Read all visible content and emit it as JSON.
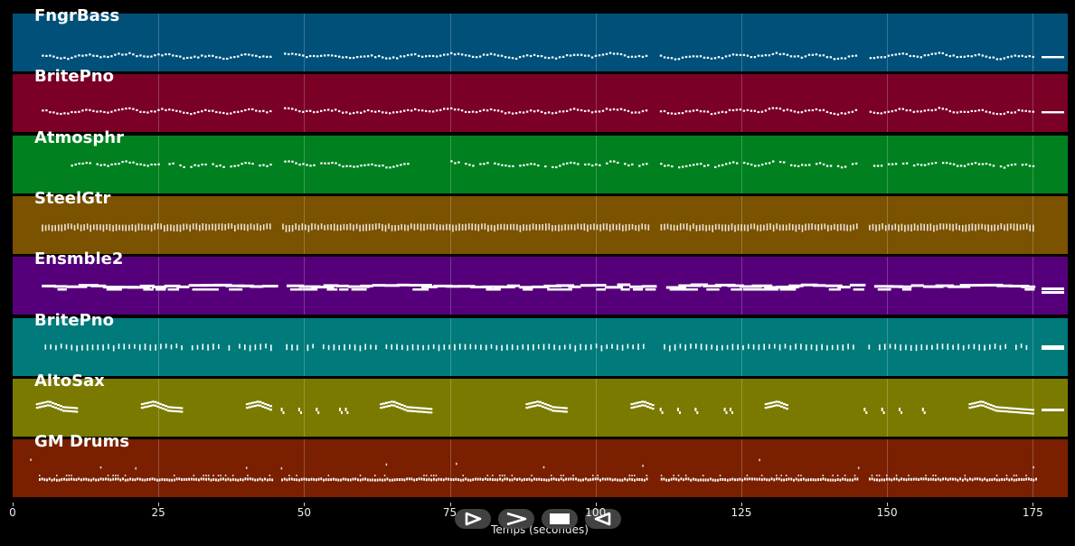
{
  "tracks": [
    {
      "name": "FngrBass",
      "color": "#00507a",
      "pattern": "wave",
      "row": 46
    },
    {
      "name": "BritePno",
      "color": "#7a0026",
      "pattern": "wave",
      "row": 40
    },
    {
      "name": "Atmosphr",
      "color": "#00801f",
      "pattern": "wave-sparse",
      "row": 31
    },
    {
      "name": "SteelGtr",
      "color": "#7a5200",
      "pattern": "dense",
      "row": 34
    },
    {
      "name": "Ensmble2",
      "color": "#55007a",
      "pattern": "long",
      "row": 33
    },
    {
      "name": "BritePno",
      "color": "#007a7a",
      "pattern": "ticks",
      "row": 32
    },
    {
      "name": "AltoSax",
      "color": "#7a7a00",
      "pattern": "phrases",
      "row": 30
    },
    {
      "name": "GM Drums",
      "color": "#7a2000",
      "pattern": "drums",
      "row": 45
    }
  ],
  "axis": {
    "xlabel": "Temps (secondes)",
    "ticks": [
      0,
      25,
      50,
      75,
      100,
      125,
      150,
      175
    ],
    "tick_labels": [
      "0",
      "25",
      "50",
      "75",
      "100",
      "125",
      "150",
      "175"
    ],
    "range": [
      0,
      181
    ]
  },
  "controls": [
    {
      "name": "play-icon"
    },
    {
      "name": "forward-icon"
    },
    {
      "name": "stop-icon"
    },
    {
      "name": "rewind-icon"
    }
  ]
}
